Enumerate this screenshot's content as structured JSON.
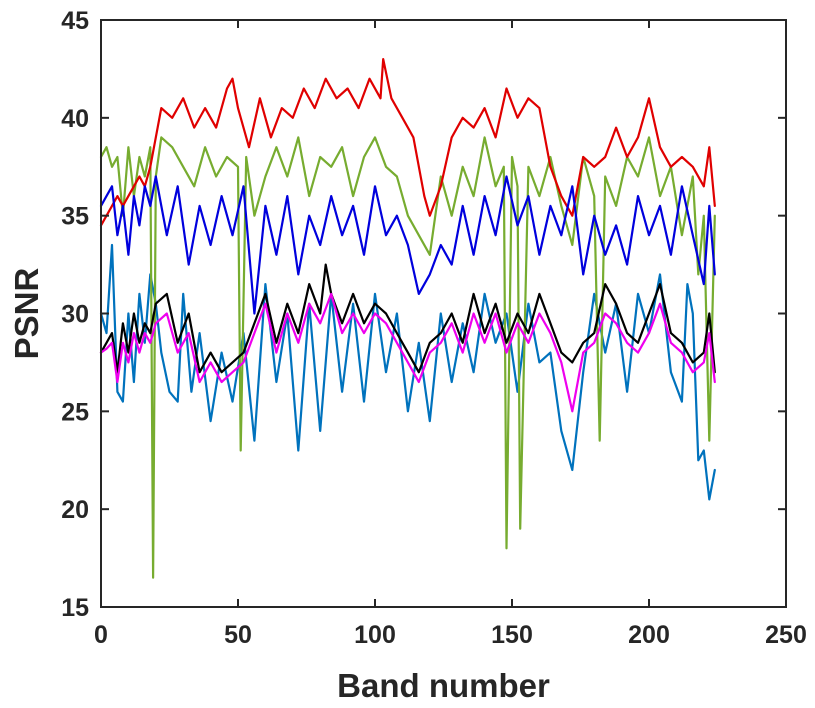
{
  "chart_data": {
    "type": "line",
    "title": "",
    "xlabel": "Band number",
    "ylabel": "PSNR",
    "xlim": [
      0,
      250
    ],
    "ylim": [
      15,
      45
    ],
    "x_ticks": [
      0,
      50,
      100,
      150,
      200,
      250
    ],
    "y_ticks": [
      15,
      20,
      25,
      30,
      35,
      40,
      45
    ],
    "x_tick_labels": [
      "0",
      "50",
      "100",
      "150",
      "200",
      "250"
    ],
    "y_tick_labels": [
      "15",
      "20",
      "25",
      "30",
      "35",
      "40",
      "45"
    ],
    "grid": false,
    "legend": "none",
    "box": true,
    "series": [
      {
        "color": "#0072BD",
        "x": [
          0,
          2,
          4,
          6,
          8,
          10,
          12,
          14,
          16,
          18,
          20,
          22,
          25,
          28,
          30,
          33,
          36,
          40,
          44,
          48,
          52,
          56,
          60,
          64,
          68,
          72,
          76,
          80,
          84,
          88,
          92,
          96,
          100,
          104,
          108,
          112,
          116,
          120,
          124,
          128,
          132,
          136,
          140,
          144,
          148,
          152,
          156,
          160,
          164,
          168,
          172,
          176,
          180,
          184,
          188,
          192,
          196,
          200,
          204,
          208,
          212,
          214,
          216,
          218,
          220,
          222,
          224
        ],
        "y": [
          30,
          29,
          33.5,
          26,
          25.5,
          30,
          26.5,
          31,
          28.5,
          32,
          30.5,
          28,
          26,
          25.5,
          31,
          26,
          29,
          24.5,
          28,
          25.5,
          29,
          23.5,
          31.5,
          26.5,
          30,
          23,
          30.5,
          24,
          31,
          26,
          30.5,
          25.5,
          31,
          27,
          30,
          25,
          28.5,
          24.5,
          30,
          26.5,
          29.5,
          27,
          31,
          28.5,
          30,
          26,
          30.5,
          27.5,
          28,
          24,
          22,
          27,
          31,
          28,
          30.5,
          26,
          31,
          29,
          32,
          27,
          25.5,
          31.5,
          30,
          22.5,
          23,
          20.5,
          22
        ]
      },
      {
        "color": "#77AC30",
        "x": [
          0,
          2,
          4,
          6,
          8,
          10,
          12,
          14,
          16,
          18,
          19,
          20,
          22,
          26,
          30,
          34,
          38,
          42,
          46,
          50,
          51,
          53,
          56,
          60,
          64,
          68,
          72,
          76,
          80,
          84,
          88,
          92,
          96,
          100,
          104,
          108,
          112,
          116,
          120,
          124,
          128,
          132,
          136,
          140,
          144,
          147,
          148,
          150,
          152,
          153,
          156,
          160,
          164,
          168,
          172,
          176,
          180,
          182,
          184,
          188,
          192,
          196,
          200,
          204,
          208,
          212,
          216,
          218,
          220,
          222,
          224
        ],
        "y": [
          38,
          38.5,
          37.5,
          38,
          35,
          38.5,
          36,
          38,
          37,
          38.5,
          16.5,
          37,
          39,
          38.5,
          37.5,
          36.5,
          38.5,
          37,
          38,
          37.5,
          23,
          38,
          35,
          37,
          38.5,
          37,
          39,
          36,
          38,
          37.5,
          38.5,
          36,
          38,
          39,
          37.5,
          37,
          35,
          34,
          33,
          37,
          35,
          37.5,
          36,
          39,
          36.5,
          37.5,
          18,
          38,
          36.5,
          19,
          37.5,
          36,
          38,
          35.5,
          33.5,
          38,
          36,
          23.5,
          37,
          35.5,
          38,
          37,
          39,
          36,
          37.5,
          34,
          37,
          32,
          35,
          23.5,
          35
        ]
      },
      {
        "color": "#E00000",
        "x": [
          0,
          2,
          4,
          6,
          8,
          10,
          12,
          14,
          16,
          18,
          20,
          22,
          26,
          30,
          34,
          38,
          42,
          46,
          48,
          50,
          54,
          58,
          62,
          66,
          70,
          74,
          78,
          82,
          86,
          90,
          94,
          98,
          102,
          103,
          106,
          110,
          114,
          118,
          120,
          124,
          128,
          132,
          136,
          140,
          144,
          148,
          152,
          156,
          160,
          164,
          168,
          172,
          176,
          180,
          184,
          188,
          192,
          196,
          200,
          204,
          208,
          212,
          216,
          220,
          222,
          224
        ],
        "y": [
          34.5,
          35,
          35.5,
          36,
          35.5,
          36,
          36.5,
          37,
          36.5,
          37.5,
          39,
          40.5,
          40,
          41,
          39.5,
          40.5,
          39.5,
          41.5,
          42,
          40.5,
          38.5,
          41,
          39,
          40.5,
          40,
          41.5,
          40.5,
          42,
          41,
          41.5,
          40.5,
          42,
          41,
          43,
          41,
          40,
          39,
          36,
          35,
          36.5,
          39,
          40,
          39.5,
          40.5,
          39,
          41.5,
          40,
          41,
          40.5,
          37.5,
          36,
          35,
          38,
          37.5,
          38,
          39.5,
          38,
          39,
          41,
          38.5,
          37.5,
          38,
          37.5,
          36.5,
          38.5,
          35.5
        ]
      },
      {
        "color": "#0000DD",
        "x": [
          0,
          2,
          4,
          6,
          8,
          10,
          12,
          14,
          16,
          18,
          20,
          24,
          28,
          32,
          36,
          40,
          44,
          48,
          52,
          56,
          60,
          64,
          68,
          72,
          76,
          80,
          84,
          88,
          92,
          96,
          100,
          104,
          108,
          112,
          116,
          120,
          124,
          128,
          132,
          136,
          140,
          144,
          148,
          152,
          156,
          160,
          164,
          168,
          172,
          176,
          180,
          184,
          188,
          192,
          196,
          200,
          204,
          208,
          212,
          216,
          220,
          222,
          224
        ],
        "y": [
          35.5,
          36,
          36.5,
          34,
          35.5,
          33,
          36,
          34.5,
          36.5,
          35.5,
          37,
          34,
          36.5,
          32.5,
          35.5,
          33.5,
          36,
          34,
          36.5,
          30,
          35.5,
          33,
          36,
          32,
          35,
          33.5,
          36,
          34,
          35.5,
          33,
          36.5,
          34,
          35,
          33.5,
          31,
          32,
          33.5,
          32.5,
          35.5,
          33,
          36,
          34,
          37,
          34.5,
          36,
          33,
          35.5,
          34,
          36.5,
          32,
          35,
          33,
          34.5,
          32.5,
          36,
          34,
          35.5,
          33,
          36.5,
          34,
          31.5,
          35.5,
          32
        ]
      },
      {
        "color": "#000000",
        "x": [
          0,
          2,
          4,
          6,
          8,
          10,
          12,
          14,
          16,
          18,
          20,
          24,
          28,
          32,
          36,
          40,
          44,
          48,
          52,
          56,
          60,
          64,
          68,
          72,
          76,
          80,
          82,
          84,
          88,
          92,
          96,
          100,
          104,
          108,
          112,
          116,
          120,
          124,
          128,
          132,
          136,
          140,
          144,
          148,
          152,
          156,
          160,
          164,
          168,
          172,
          176,
          180,
          184,
          188,
          192,
          196,
          200,
          204,
          208,
          212,
          216,
          220,
          222,
          224
        ],
        "y": [
          28,
          28.5,
          29,
          27,
          29.5,
          28,
          30,
          28.5,
          29.5,
          29,
          30.5,
          31,
          28.5,
          30,
          27,
          28,
          27,
          27.5,
          28,
          29.5,
          31,
          28.5,
          30.5,
          29,
          31.5,
          30,
          32.5,
          31,
          29.5,
          31,
          29.5,
          30.5,
          30,
          29,
          28,
          27,
          28.5,
          29,
          30,
          28.5,
          31,
          29,
          30.5,
          28.5,
          30,
          29,
          31,
          29.5,
          28,
          27.5,
          28.5,
          29,
          31.5,
          30.5,
          29,
          28.5,
          30,
          31.5,
          29,
          28.5,
          27.5,
          28,
          30,
          27
        ]
      },
      {
        "color": "#EE00EE",
        "x": [
          0,
          2,
          4,
          6,
          8,
          10,
          12,
          14,
          16,
          18,
          20,
          24,
          28,
          32,
          36,
          40,
          44,
          48,
          52,
          56,
          60,
          64,
          68,
          72,
          76,
          80,
          84,
          88,
          92,
          96,
          100,
          104,
          108,
          112,
          116,
          120,
          124,
          128,
          132,
          136,
          140,
          144,
          148,
          152,
          156,
          160,
          164,
          168,
          172,
          176,
          180,
          184,
          188,
          192,
          196,
          200,
          204,
          208,
          212,
          216,
          220,
          222,
          224
        ],
        "y": [
          28,
          28.2,
          28.5,
          26.5,
          28.5,
          27.5,
          29,
          28,
          29,
          28.5,
          29.5,
          30,
          28,
          29,
          26.5,
          27.5,
          26.5,
          27,
          27.5,
          29,
          30.5,
          28,
          30,
          28.5,
          30.5,
          29.5,
          31,
          29,
          30,
          29,
          30,
          29.5,
          28.5,
          27.5,
          26.5,
          28,
          28.5,
          29.5,
          28,
          30,
          28.5,
          30,
          28,
          29.5,
          28.5,
          30,
          29,
          27.5,
          25,
          28,
          28.5,
          30,
          29.5,
          28.5,
          28,
          29,
          30.5,
          28.5,
          28,
          27,
          27.5,
          29,
          26.5
        ]
      }
    ]
  }
}
